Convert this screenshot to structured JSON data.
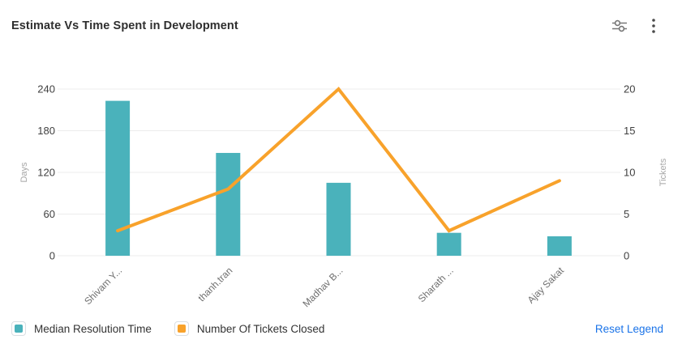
{
  "header": {
    "title": "Estimate Vs Time Spent in Development",
    "icons": [
      {
        "name": "filter-sliders-icon"
      },
      {
        "name": "kebab-menu-icon"
      }
    ]
  },
  "chart_data": {
    "type": "bar",
    "subtype": "combo-bar-line",
    "categories": [
      "Shivam Y...",
      "thanh.tran",
      "Madhav B...",
      "Sharath ...",
      "Ajay Sakat"
    ],
    "series": [
      {
        "name": "Median Resolution Time",
        "type": "bar",
        "axis": "left",
        "color": "#4ab2bb",
        "values": [
          223,
          148,
          105,
          33,
          28
        ]
      },
      {
        "name": "Number Of Tickets Closed",
        "type": "line",
        "axis": "right",
        "color": "#f8a22b",
        "values": [
          3,
          8,
          20,
          3,
          9
        ]
      }
    ],
    "title": "Estimate Vs Time Spent in Development",
    "left_axis": {
      "label": "Days",
      "min": 0,
      "max": 240,
      "ticks": [
        0,
        60,
        120,
        180,
        240
      ]
    },
    "right_axis": {
      "label": "Tickets",
      "min": 0,
      "max": 20,
      "ticks": [
        0,
        5,
        10,
        15,
        20
      ]
    },
    "grid": true,
    "legend_position": "bottom"
  },
  "legend": {
    "items": [
      {
        "label": "Median Resolution Time",
        "color": "#4ab2bb"
      },
      {
        "label": "Number Of Tickets Closed",
        "color": "#f8a22b"
      }
    ],
    "reset_label": "Reset Legend"
  },
  "colors": {
    "bar": "#4ab2bb",
    "line": "#f8a22b",
    "gridline": "#ececec",
    "link": "#1a73e8",
    "tick_text": "#404040",
    "axis_title_text": "#a6a6a6"
  }
}
